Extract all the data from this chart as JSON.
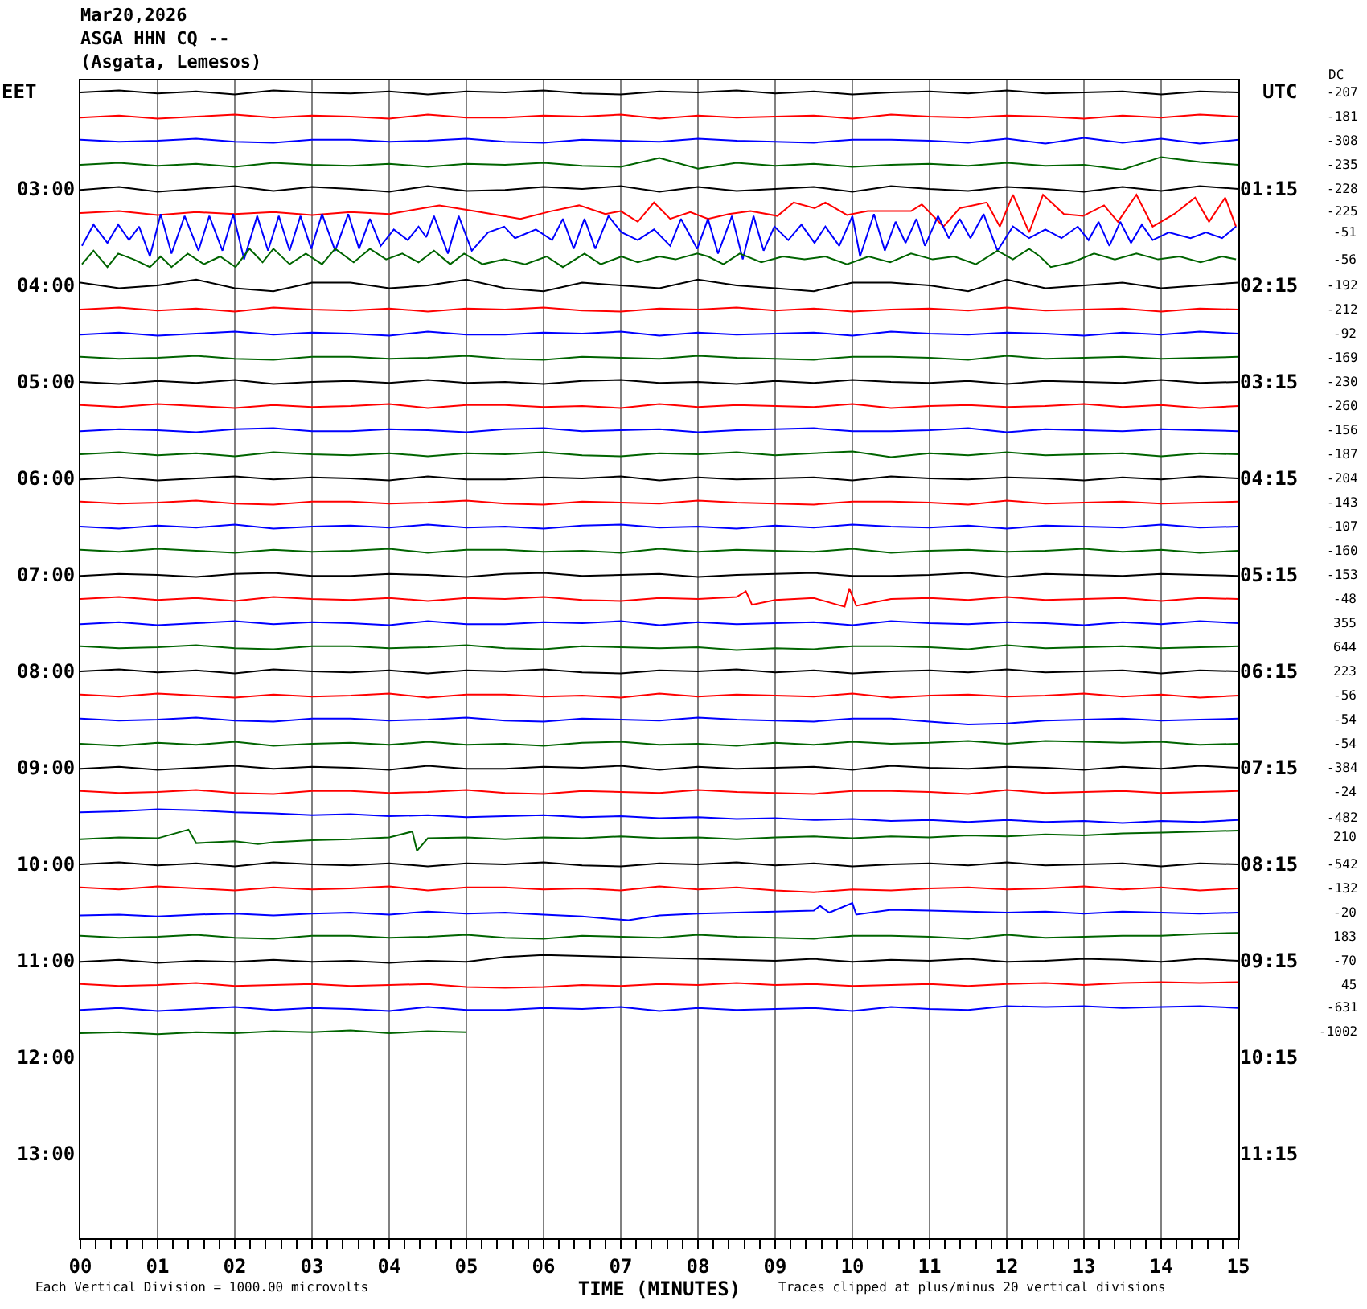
{
  "chart_data": {
    "type": "line",
    "title": "Mar20,2026\nASGA HHN CQ --\n(Asgata, Lemesos)",
    "xlabel": "TIME (MINUTES)",
    "ylabel": "EET",
    "y2label": "UTC",
    "annotations": [
      "Each Vertical Division = 1000.00 microvolts",
      "Traces clipped at plus/minus 20 vertical divisions",
      "DC",
      "-207",
      "-181",
      "-308",
      "-235",
      "-228",
      "-225",
      "-51",
      "-56",
      "-192",
      "-212",
      "-92",
      "-169",
      "-230",
      "-260",
      "-156",
      "-187",
      "-204",
      "-143",
      "-107",
      "-160",
      "-153",
      "-48",
      "355",
      "644",
      "223",
      "-56",
      "-54",
      "-54",
      "-384",
      "-24",
      "-482",
      "210",
      "-542",
      "-132",
      "-20",
      "183",
      "-70",
      "45",
      "-631",
      "-1002"
    ],
    "x": [
      0,
      0.5,
      1,
      1.5,
      2,
      2.5,
      3,
      3.5,
      4,
      4.5,
      5,
      5.5,
      6,
      6.5,
      7,
      7.5,
      8,
      8.5,
      9,
      9.5,
      10,
      10.5,
      11,
      11.5,
      12,
      12.5,
      13,
      13.5,
      14,
      14.5,
      15
    ],
    "series": [
      {
        "color": "#000000",
        "values": [
          2,
          1.98,
          2.01,
          1.99,
          2.02,
          1.98,
          2,
          2.01,
          1.99,
          2.02,
          1.99,
          2,
          1.98,
          2.01,
          2.02,
          1.99,
          2,
          1.98,
          2.01,
          1.99,
          2.02,
          2,
          1.99,
          2.01,
          1.98,
          2.01,
          2,
          1.99,
          2.02,
          1.99,
          2
        ]
      },
      {
        "color": "#ff0000",
        "values": [
          2.26,
          2.24,
          2.27,
          2.25,
          2.23,
          2.26,
          2.24,
          2.25,
          2.27,
          2.23,
          2.26,
          2.26,
          2.24,
          2.25,
          2.23,
          2.27,
          2.24,
          2.26,
          2.25,
          2.24,
          2.27,
          2.23,
          2.25,
          2.26,
          2.24,
          2.25,
          2.27,
          2.24,
          2.26,
          2.23,
          2.25
        ]
      },
      {
        "color": "#0000ff",
        "values": [
          2.49,
          2.51,
          2.5,
          2.48,
          2.51,
          2.52,
          2.49,
          2.49,
          2.51,
          2.5,
          2.48,
          2.51,
          2.52,
          2.49,
          2.5,
          2.51,
          2.48,
          2.5,
          2.51,
          2.52,
          2.49,
          2.49,
          2.5,
          2.52,
          2.48,
          2.53,
          2.47,
          2.52,
          2.48,
          2.53,
          2.49
        ]
      },
      {
        "color": "#006400",
        "values": [
          2.75,
          2.73,
          2.76,
          2.74,
          2.77,
          2.73,
          2.75,
          2.76,
          2.74,
          2.77,
          2.74,
          2.75,
          2.73,
          2.76,
          2.77,
          2.68,
          2.79,
          2.73,
          2.76,
          2.74,
          2.77,
          2.75,
          2.74,
          2.76,
          2.73,
          2.76,
          2.75,
          2.8,
          2.67,
          2.72,
          2.75
        ]
      },
      {
        "color": "#000000",
        "values": [
          3.01,
          2.98,
          3.03,
          3,
          2.97,
          3.02,
          2.98,
          3,
          3.03,
          2.97,
          3.02,
          3.01,
          2.98,
          3,
          2.97,
          3.03,
          2.98,
          3.02,
          3,
          2.98,
          3.03,
          2.97,
          3,
          3.02,
          2.98,
          3,
          3.03,
          2.98,
          3.02,
          2.97,
          3
        ]
      },
      {
        "color": "#ff0000",
        "x": [
          0,
          0.5,
          1,
          1.5,
          2,
          2.5,
          3,
          3.5,
          4,
          4.65,
          5.1,
          5.7,
          6.1,
          6.46,
          6.8,
          7,
          7.22,
          7.43,
          7.64,
          7.9,
          8.13,
          8.4,
          8.68,
          9.03,
          9.24,
          9.51,
          9.65,
          9.93,
          10.2,
          10.49,
          10.76,
          10.9,
          11.18,
          11.39,
          11.74,
          11.91,
          12.08,
          12.29,
          12.47,
          12.74,
          12.99,
          13.26,
          13.44,
          13.68,
          13.89,
          14.17,
          14.44,
          14.62,
          14.83,
          14.97
        ],
        "values": [
          3.25,
          3.23,
          3.27,
          3.24,
          3.26,
          3.24,
          3.27,
          3.24,
          3.26,
          3.17,
          3.23,
          3.31,
          3.23,
          3.17,
          3.26,
          3.23,
          3.34,
          3.14,
          3.31,
          3.24,
          3.31,
          3.26,
          3.23,
          3.28,
          3.14,
          3.2,
          3.14,
          3.27,
          3.23,
          3.23,
          3.23,
          3.16,
          3.39,
          3.2,
          3.14,
          3.39,
          3.06,
          3.45,
          3.06,
          3.26,
          3.28,
          3.17,
          3.34,
          3.06,
          3.39,
          3.26,
          3.09,
          3.34,
          3.09,
          3.39
        ]
      },
      {
        "color": "#0000ff",
        "x": [
          0.02,
          0.17,
          0.35,
          0.49,
          0.63,
          0.76,
          0.9,
          1.04,
          1.18,
          1.35,
          1.53,
          1.67,
          1.84,
          1.98,
          2.12,
          2.29,
          2.43,
          2.57,
          2.71,
          2.85,
          2.99,
          3.13,
          3.3,
          3.47,
          3.61,
          3.75,
          3.89,
          4.06,
          4.24,
          4.38,
          4.48,
          4.58,
          4.76,
          4.9,
          5.07,
          5.28,
          5.49,
          5.63,
          5.9,
          6.11,
          6.25,
          6.39,
          6.53,
          6.67,
          6.84,
          7.01,
          7.22,
          7.43,
          7.64,
          7.78,
          7.99,
          8.13,
          8.26,
          8.44,
          8.58,
          8.72,
          8.85,
          8.99,
          9.17,
          9.34,
          9.51,
          9.65,
          9.83,
          10,
          10.1,
          10.28,
          10.42,
          10.56,
          10.69,
          10.83,
          10.94,
          11.11,
          11.25,
          11.39,
          11.53,
          11.7,
          11.88,
          12.08,
          12.29,
          12.5,
          12.71,
          12.92,
          13.06,
          13.19,
          13.33,
          13.47,
          13.61,
          13.75,
          13.89,
          14.1,
          14.38,
          14.58,
          14.79,
          14.97
        ],
        "values": [
          3.59,
          3.37,
          3.56,
          3.37,
          3.53,
          3.39,
          3.7,
          3.26,
          3.67,
          3.28,
          3.64,
          3.28,
          3.64,
          3.26,
          3.73,
          3.28,
          3.64,
          3.28,
          3.64,
          3.28,
          3.62,
          3.26,
          3.64,
          3.26,
          3.62,
          3.31,
          3.59,
          3.42,
          3.53,
          3.39,
          3.5,
          3.28,
          3.67,
          3.28,
          3.64,
          3.45,
          3.39,
          3.51,
          3.42,
          3.53,
          3.31,
          3.62,
          3.31,
          3.62,
          3.28,
          3.45,
          3.53,
          3.42,
          3.59,
          3.31,
          3.62,
          3.31,
          3.67,
          3.28,
          3.73,
          3.28,
          3.64,
          3.39,
          3.53,
          3.37,
          3.56,
          3.39,
          3.59,
          3.28,
          3.7,
          3.26,
          3.64,
          3.34,
          3.56,
          3.31,
          3.59,
          3.28,
          3.51,
          3.31,
          3.51,
          3.26,
          3.64,
          3.39,
          3.51,
          3.42,
          3.51,
          3.39,
          3.53,
          3.34,
          3.59,
          3.34,
          3.56,
          3.37,
          3.53,
          3.45,
          3.51,
          3.45,
          3.51,
          3.39
        ]
      },
      {
        "color": "#006400",
        "x": [
          0.02,
          0.17,
          0.35,
          0.49,
          0.69,
          0.9,
          1.04,
          1.18,
          1.39,
          1.6,
          1.81,
          2.01,
          2.19,
          2.36,
          2.5,
          2.71,
          2.92,
          3.13,
          3.3,
          3.54,
          3.75,
          3.96,
          4.17,
          4.38,
          4.58,
          4.79,
          4.97,
          5.21,
          5.49,
          5.76,
          6.04,
          6.25,
          6.53,
          6.74,
          7.01,
          7.22,
          7.5,
          7.71,
          7.99,
          8.13,
          8.33,
          8.54,
          8.82,
          9.1,
          9.38,
          9.65,
          9.93,
          10.21,
          10.49,
          10.76,
          11.04,
          11.32,
          11.6,
          11.88,
          12.08,
          12.29,
          12.43,
          12.57,
          12.85,
          13.13,
          13.4,
          13.68,
          13.96,
          14.24,
          14.51,
          14.79,
          14.97
        ],
        "values": [
          3.78,
          3.64,
          3.81,
          3.67,
          3.73,
          3.81,
          3.7,
          3.81,
          3.67,
          3.78,
          3.7,
          3.81,
          3.62,
          3.76,
          3.62,
          3.78,
          3.67,
          3.78,
          3.62,
          3.76,
          3.62,
          3.73,
          3.67,
          3.76,
          3.64,
          3.78,
          3.67,
          3.78,
          3.73,
          3.78,
          3.7,
          3.81,
          3.67,
          3.78,
          3.7,
          3.76,
          3.7,
          3.73,
          3.67,
          3.7,
          3.78,
          3.67,
          3.76,
          3.7,
          3.73,
          3.7,
          3.78,
          3.7,
          3.76,
          3.67,
          3.73,
          3.7,
          3.78,
          3.64,
          3.73,
          3.62,
          3.7,
          3.81,
          3.76,
          3.67,
          3.73,
          3.67,
          3.73,
          3.7,
          3.76,
          3.7,
          3.73
        ]
      },
      {
        "color": "#000000",
        "values": [
          3.97,
          4.03,
          4,
          3.94,
          4.03,
          4.06,
          3.97,
          3.97,
          4.03,
          4,
          3.94,
          4.03,
          4.06,
          3.97,
          4,
          4.03,
          3.94,
          4,
          4.03,
          4.06,
          3.97,
          3.97,
          4,
          4.06,
          3.94,
          4.03,
          4,
          3.97,
          4.03,
          4,
          3.97
        ]
      },
      {
        "color": "#ff0000",
        "values": [
          4.25,
          4.23,
          4.26,
          4.24,
          4.27,
          4.23,
          4.25,
          4.26,
          4.24,
          4.27,
          4.24,
          4.25,
          4.23,
          4.26,
          4.27,
          4.24,
          4.25,
          4.23,
          4.26,
          4.24,
          4.27,
          4.25,
          4.24,
          4.26,
          4.23,
          4.26,
          4.25,
          4.24,
          4.27,
          4.24,
          4.25
        ]
      },
      {
        "color": "#0000ff",
        "values": [
          4.51,
          4.49,
          4.52,
          4.5,
          4.48,
          4.51,
          4.49,
          4.5,
          4.52,
          4.48,
          4.51,
          4.51,
          4.49,
          4.5,
          4.48,
          4.52,
          4.49,
          4.51,
          4.5,
          4.49,
          4.52,
          4.48,
          4.5,
          4.51,
          4.49,
          4.5,
          4.52,
          4.49,
          4.51,
          4.48,
          4.5
        ]
      },
      {
        "color": "#006400",
        "values": [
          4.74,
          4.76,
          4.75,
          4.73,
          4.76,
          4.77,
          4.74,
          4.74,
          4.76,
          4.75,
          4.73,
          4.76,
          4.77,
          4.74,
          4.75,
          4.76,
          4.73,
          4.75,
          4.76,
          4.77,
          4.74,
          4.74,
          4.75,
          4.77,
          4.73,
          4.76,
          4.75,
          4.74,
          4.76,
          4.75,
          4.74
        ]
      },
      {
        "color": "#000000",
        "values": [
          5,
          5.02,
          4.99,
          5.01,
          4.98,
          5.02,
          5,
          4.99,
          5.01,
          4.98,
          5.01,
          5,
          5.02,
          4.99,
          4.98,
          5.01,
          5,
          5.02,
          4.99,
          5.01,
          4.98,
          5,
          5.01,
          4.99,
          5.02,
          4.99,
          5,
          5.01,
          4.98,
          5.01,
          5
        ]
      },
      {
        "color": "#ff0000",
        "values": [
          5.24,
          5.26,
          5.23,
          5.25,
          5.27,
          5.24,
          5.26,
          5.25,
          5.23,
          5.27,
          5.24,
          5.24,
          5.26,
          5.25,
          5.27,
          5.23,
          5.26,
          5.24,
          5.25,
          5.26,
          5.23,
          5.27,
          5.25,
          5.24,
          5.26,
          5.25,
          5.23,
          5.26,
          5.24,
          5.27,
          5.25
        ]
      },
      {
        "color": "#0000ff",
        "values": [
          5.51,
          5.49,
          5.5,
          5.52,
          5.49,
          5.48,
          5.51,
          5.51,
          5.49,
          5.5,
          5.52,
          5.49,
          5.48,
          5.51,
          5.5,
          5.49,
          5.52,
          5.5,
          5.49,
          5.48,
          5.51,
          5.51,
          5.5,
          5.48,
          5.52,
          5.49,
          5.5,
          5.51,
          5.49,
          5.5,
          5.51
        ]
      },
      {
        "color": "#006400",
        "values": [
          5.75,
          5.73,
          5.76,
          5.74,
          5.77,
          5.73,
          5.75,
          5.76,
          5.74,
          5.77,
          5.74,
          5.75,
          5.73,
          5.76,
          5.77,
          5.74,
          5.75,
          5.73,
          5.76,
          5.74,
          5.72,
          5.78,
          5.74,
          5.76,
          5.73,
          5.76,
          5.75,
          5.74,
          5.77,
          5.74,
          5.75
        ]
      },
      {
        "color": "#000000",
        "values": [
          6.01,
          5.99,
          6.02,
          6,
          5.98,
          6.01,
          5.99,
          6,
          6.02,
          5.98,
          6.01,
          6.01,
          5.99,
          6,
          5.98,
          6.02,
          5.99,
          6.01,
          6,
          5.99,
          6.02,
          5.98,
          6,
          6.01,
          5.99,
          6,
          6.02,
          5.99,
          6.01,
          5.98,
          6
        ]
      },
      {
        "color": "#ff0000",
        "values": [
          6.24,
          6.26,
          6.25,
          6.23,
          6.26,
          6.27,
          6.24,
          6.24,
          6.26,
          6.25,
          6.23,
          6.26,
          6.27,
          6.24,
          6.25,
          6.26,
          6.23,
          6.25,
          6.26,
          6.27,
          6.24,
          6.24,
          6.25,
          6.27,
          6.23,
          6.26,
          6.25,
          6.24,
          6.26,
          6.25,
          6.24
        ]
      },
      {
        "color": "#0000ff",
        "values": [
          6.5,
          6.52,
          6.49,
          6.51,
          6.48,
          6.52,
          6.5,
          6.49,
          6.51,
          6.48,
          6.51,
          6.5,
          6.52,
          6.49,
          6.48,
          6.51,
          6.5,
          6.52,
          6.49,
          6.51,
          6.48,
          6.5,
          6.51,
          6.49,
          6.52,
          6.49,
          6.5,
          6.51,
          6.48,
          6.51,
          6.5
        ]
      },
      {
        "color": "#006400",
        "values": [
          6.74,
          6.76,
          6.73,
          6.75,
          6.77,
          6.74,
          6.76,
          6.75,
          6.73,
          6.77,
          6.74,
          6.74,
          6.76,
          6.75,
          6.77,
          6.73,
          6.76,
          6.74,
          6.75,
          6.76,
          6.73,
          6.77,
          6.75,
          6.74,
          6.76,
          6.75,
          6.73,
          6.76,
          6.74,
          6.77,
          6.75
        ]
      },
      {
        "color": "#000000",
        "values": [
          7.01,
          6.99,
          7,
          7.02,
          6.99,
          6.98,
          7.01,
          7.01,
          6.99,
          7,
          7.02,
          6.99,
          6.98,
          7.01,
          7,
          6.99,
          7.02,
          7,
          6.99,
          6.98,
          7.01,
          7.01,
          7,
          6.98,
          7.02,
          6.99,
          7,
          7.01,
          6.99,
          7,
          7.01
        ]
      },
      {
        "color": "#ff0000",
        "x": [
          0,
          0.5,
          1,
          1.5,
          2,
          2.5,
          3,
          3.5,
          4,
          4.5,
          5,
          5.5,
          6,
          6.5,
          7,
          7.5,
          8,
          8.5,
          8.62,
          8.7,
          9,
          9.5,
          9.9,
          9.96,
          10.05,
          10.5,
          11,
          11.5,
          12,
          12.5,
          13,
          13.5,
          14,
          14.5,
          15
        ],
        "values": [
          7.25,
          7.23,
          7.26,
          7.24,
          7.27,
          7.23,
          7.25,
          7.26,
          7.24,
          7.27,
          7.24,
          7.25,
          7.23,
          7.26,
          7.27,
          7.24,
          7.25,
          7.23,
          7.17,
          7.31,
          7.26,
          7.24,
          7.33,
          7.14,
          7.32,
          7.25,
          7.24,
          7.26,
          7.23,
          7.26,
          7.25,
          7.24,
          7.27,
          7.24,
          7.25
        ]
      },
      {
        "color": "#0000ff",
        "values": [
          7.51,
          7.49,
          7.52,
          7.5,
          7.48,
          7.51,
          7.49,
          7.5,
          7.52,
          7.48,
          7.51,
          7.51,
          7.49,
          7.5,
          7.48,
          7.52,
          7.49,
          7.51,
          7.5,
          7.49,
          7.52,
          7.48,
          7.5,
          7.51,
          7.49,
          7.5,
          7.52,
          7.49,
          7.51,
          7.48,
          7.5
        ]
      },
      {
        "color": "#006400",
        "values": [
          7.74,
          7.76,
          7.75,
          7.73,
          7.76,
          7.77,
          7.74,
          7.74,
          7.76,
          7.75,
          7.73,
          7.76,
          7.77,
          7.74,
          7.75,
          7.76,
          7.75,
          7.78,
          7.76,
          7.77,
          7.74,
          7.74,
          7.75,
          7.77,
          7.73,
          7.76,
          7.75,
          7.74,
          7.76,
          7.75,
          7.74
        ]
      },
      {
        "color": "#000000",
        "values": [
          8,
          7.98,
          8.01,
          7.99,
          8.02,
          7.98,
          8,
          8.01,
          7.99,
          8.02,
          7.99,
          8,
          7.98,
          8.01,
          8.02,
          7.99,
          8,
          7.98,
          8.01,
          7.99,
          8.02,
          8,
          7.99,
          8.01,
          7.98,
          8.01,
          8,
          7.99,
          8.02,
          7.99,
          8
        ]
      },
      {
        "color": "#ff0000",
        "values": [
          8.24,
          8.26,
          8.23,
          8.25,
          8.27,
          8.24,
          8.26,
          8.25,
          8.23,
          8.27,
          8.24,
          8.24,
          8.26,
          8.25,
          8.27,
          8.23,
          8.26,
          8.24,
          8.25,
          8.26,
          8.23,
          8.27,
          8.25,
          8.24,
          8.26,
          8.25,
          8.23,
          8.26,
          8.24,
          8.27,
          8.25
        ]
      },
      {
        "color": "#0000ff",
        "values": [
          8.49,
          8.51,
          8.5,
          8.48,
          8.51,
          8.52,
          8.49,
          8.49,
          8.51,
          8.5,
          8.48,
          8.51,
          8.52,
          8.49,
          8.5,
          8.51,
          8.48,
          8.5,
          8.51,
          8.52,
          8.49,
          8.49,
          8.52,
          8.55,
          8.54,
          8.51,
          8.5,
          8.49,
          8.51,
          8.5,
          8.49
        ]
      },
      {
        "color": "#006400",
        "values": [
          8.75,
          8.77,
          8.74,
          8.76,
          8.73,
          8.77,
          8.75,
          8.74,
          8.76,
          8.73,
          8.76,
          8.75,
          8.77,
          8.74,
          8.73,
          8.76,
          8.75,
          8.77,
          8.74,
          8.76,
          8.73,
          8.75,
          8.74,
          8.72,
          8.75,
          8.72,
          8.73,
          8.74,
          8.73,
          8.76,
          8.75
        ]
      },
      {
        "color": "#000000",
        "values": [
          9.01,
          8.99,
          9.02,
          9,
          8.98,
          9.01,
          8.99,
          9,
          9.02,
          8.98,
          9.01,
          9.01,
          8.99,
          9,
          8.98,
          9.02,
          8.99,
          9.01,
          9,
          8.99,
          9.02,
          8.98,
          9,
          9.01,
          8.99,
          9,
          9.02,
          8.99,
          9.01,
          8.98,
          9
        ]
      },
      {
        "color": "#ff0000",
        "values": [
          9.24,
          9.26,
          9.25,
          9.23,
          9.26,
          9.27,
          9.24,
          9.24,
          9.26,
          9.25,
          9.23,
          9.26,
          9.27,
          9.24,
          9.25,
          9.26,
          9.23,
          9.25,
          9.26,
          9.27,
          9.24,
          9.24,
          9.25,
          9.27,
          9.23,
          9.26,
          9.25,
          9.24,
          9.26,
          9.25,
          9.24
        ]
      },
      {
        "color": "#0000ff",
        "values": [
          9.46,
          9.45,
          9.43,
          9.44,
          9.46,
          9.47,
          9.49,
          9.48,
          9.5,
          9.49,
          9.51,
          9.5,
          9.49,
          9.51,
          9.5,
          9.52,
          9.51,
          9.53,
          9.52,
          9.54,
          9.53,
          9.55,
          9.54,
          9.56,
          9.54,
          9.56,
          9.55,
          9.57,
          9.55,
          9.56,
          9.54
        ]
      },
      {
        "color": "#006400",
        "x": [
          0,
          0.5,
          1,
          1.4,
          1.5,
          2,
          2.3,
          2.5,
          3,
          3.5,
          4,
          4.3,
          4.36,
          4.5,
          5,
          5.5,
          6,
          6.5,
          7,
          7.5,
          8,
          8.5,
          9,
          9.5,
          10,
          10.5,
          11,
          11.5,
          12,
          12.5,
          13,
          13.5,
          14,
          14.5,
          15
        ],
        "values": [
          9.74,
          9.72,
          9.73,
          9.64,
          9.78,
          9.76,
          9.79,
          9.77,
          9.75,
          9.74,
          9.72,
          9.66,
          9.86,
          9.73,
          9.72,
          9.74,
          9.72,
          9.73,
          9.71,
          9.73,
          9.72,
          9.74,
          9.72,
          9.71,
          9.73,
          9.71,
          9.72,
          9.7,
          9.71,
          9.69,
          9.7,
          9.68,
          9.67,
          9.66,
          9.65
        ]
      },
      {
        "color": "#000000",
        "values": [
          10,
          9.98,
          10.01,
          9.99,
          10.02,
          9.98,
          10,
          10.01,
          9.99,
          10.02,
          9.99,
          10,
          9.98,
          10.01,
          10.02,
          9.99,
          10,
          9.98,
          10.01,
          9.99,
          10.02,
          10,
          9.99,
          10.01,
          9.98,
          10.01,
          10,
          9.99,
          10.02,
          9.99,
          10
        ]
      },
      {
        "color": "#ff0000",
        "values": [
          10.24,
          10.26,
          10.23,
          10.25,
          10.27,
          10.24,
          10.26,
          10.25,
          10.23,
          10.27,
          10.24,
          10.24,
          10.26,
          10.25,
          10.27,
          10.23,
          10.26,
          10.24,
          10.27,
          10.29,
          10.26,
          10.27,
          10.25,
          10.24,
          10.26,
          10.25,
          10.23,
          10.26,
          10.24,
          10.27,
          10.25
        ]
      },
      {
        "color": "#0000ff",
        "x": [
          0,
          0.5,
          1,
          1.5,
          2,
          2.5,
          3,
          3.5,
          4,
          4.5,
          5,
          5.5,
          6,
          6.5,
          7.1,
          7.5,
          8,
          8.5,
          9,
          9.5,
          9.58,
          9.7,
          10,
          10.05,
          10.5,
          11,
          11.5,
          12,
          12.5,
          13,
          13.5,
          14,
          14.5,
          15
        ],
        "values": [
          10.53,
          10.52,
          10.54,
          10.52,
          10.51,
          10.53,
          10.51,
          10.5,
          10.52,
          10.49,
          10.51,
          10.5,
          10.52,
          10.54,
          10.58,
          10.53,
          10.51,
          10.5,
          10.49,
          10.48,
          10.43,
          10.5,
          10.4,
          10.52,
          10.47,
          10.48,
          10.49,
          10.5,
          10.49,
          10.51,
          10.49,
          10.5,
          10.51,
          10.5
        ]
      },
      {
        "color": "#006400",
        "values": [
          10.74,
          10.76,
          10.75,
          10.73,
          10.76,
          10.77,
          10.74,
          10.74,
          10.76,
          10.75,
          10.73,
          10.76,
          10.77,
          10.74,
          10.75,
          10.76,
          10.73,
          10.75,
          10.76,
          10.77,
          10.74,
          10.74,
          10.75,
          10.77,
          10.73,
          10.76,
          10.75,
          10.74,
          10.74,
          10.72,
          10.71
        ]
      },
      {
        "color": "#000000",
        "values": [
          11.01,
          10.99,
          11.02,
          11,
          11.01,
          10.99,
          11.01,
          11,
          11.02,
          11,
          11.01,
          10.96,
          10.94,
          10.95,
          10.96,
          10.97,
          10.98,
          10.99,
          11,
          10.98,
          11.01,
          10.99,
          11,
          10.98,
          11.01,
          11,
          10.98,
          10.99,
          11.01,
          10.98,
          11
        ]
      },
      {
        "color": "#ff0000",
        "values": [
          11.24,
          11.26,
          11.25,
          11.23,
          11.26,
          11.25,
          11.24,
          11.26,
          11.25,
          11.24,
          11.27,
          11.28,
          11.27,
          11.25,
          11.26,
          11.24,
          11.25,
          11.23,
          11.25,
          11.24,
          11.26,
          11.25,
          11.24,
          11.26,
          11.24,
          11.23,
          11.25,
          11.23,
          11.22,
          11.23,
          11.22
        ]
      },
      {
        "color": "#0000ff",
        "values": [
          11.51,
          11.49,
          11.52,
          11.5,
          11.48,
          11.51,
          11.49,
          11.5,
          11.52,
          11.48,
          11.51,
          11.51,
          11.49,
          11.5,
          11.48,
          11.52,
          11.49,
          11.51,
          11.5,
          11.49,
          11.52,
          11.48,
          11.5,
          11.51,
          11.47,
          11.48,
          11.47,
          11.49,
          11.48,
          11.47,
          11.49
        ]
      },
      {
        "color": "#006400",
        "x": [
          0,
          0.5,
          1,
          1.5,
          2,
          2.5,
          3,
          3.5,
          4,
          4.5,
          5
        ],
        "values": [
          11.75,
          11.74,
          11.76,
          11.74,
          11.75,
          11.73,
          11.74,
          11.72,
          11.75,
          11.73,
          11.74
        ]
      }
    ],
    "xlim": [
      0,
      15
    ],
    "xticks": [
      {
        "value": 0,
        "label": "00"
      },
      {
        "value": 0.2,
        "label": null
      },
      {
        "value": 0.4,
        "label": null
      },
      {
        "value": 0.6,
        "label": null
      },
      {
        "value": 0.8,
        "label": null
      },
      {
        "value": 1,
        "label": "01"
      },
      {
        "value": 1.2,
        "label": null
      },
      {
        "value": 1.4,
        "label": null
      },
      {
        "value": 1.6,
        "label": null
      },
      {
        "value": 1.8,
        "label": null
      },
      {
        "value": 2,
        "label": "02"
      },
      {
        "value": 2.2,
        "label": null
      },
      {
        "value": 2.4,
        "label": null
      },
      {
        "value": 2.6,
        "label": null
      },
      {
        "value": 2.8,
        "label": null
      },
      {
        "value": 3,
        "label": "03"
      },
      {
        "value": 3.2,
        "label": null
      },
      {
        "value": 3.4,
        "label": null
      },
      {
        "value": 3.6,
        "label": null
      },
      {
        "value": 3.8,
        "label": null
      },
      {
        "value": 4,
        "label": "04"
      },
      {
        "value": 4.2,
        "label": null
      },
      {
        "value": 4.4,
        "label": null
      },
      {
        "value": 4.6,
        "label": null
      },
      {
        "value": 4.8,
        "label": null
      },
      {
        "value": 5,
        "label": "05"
      },
      {
        "value": 5.2,
        "label": null
      },
      {
        "value": 5.4,
        "label": null
      },
      {
        "value": 5.6,
        "label": null
      },
      {
        "value": 5.8,
        "label": null
      },
      {
        "value": 6,
        "label": "06"
      },
      {
        "value": 6.2,
        "label": null
      },
      {
        "value": 6.4,
        "label": null
      },
      {
        "value": 6.6,
        "label": null
      },
      {
        "value": 6.8,
        "label": null
      },
      {
        "value": 7,
        "label": "07"
      },
      {
        "value": 7.2,
        "label": null
      },
      {
        "value": 7.4,
        "label": null
      },
      {
        "value": 7.6,
        "label": null
      },
      {
        "value": 7.8,
        "label": null
      },
      {
        "value": 8,
        "label": "08"
      },
      {
        "value": 8.2,
        "label": null
      },
      {
        "value": 8.4,
        "label": null
      },
      {
        "value": 8.6,
        "label": null
      },
      {
        "value": 8.8,
        "label": null
      },
      {
        "value": 9,
        "label": "09"
      },
      {
        "value": 9.2,
        "label": null
      },
      {
        "value": 9.4,
        "label": null
      },
      {
        "value": 9.6,
        "label": null
      },
      {
        "value": 9.8,
        "label": null
      },
      {
        "value": 10,
        "label": "10"
      },
      {
        "value": 10.2,
        "label": null
      },
      {
        "value": 10.4,
        "label": null
      },
      {
        "value": 10.6,
        "label": null
      },
      {
        "value": 10.8,
        "label": null
      },
      {
        "value": 11,
        "label": "11"
      },
      {
        "value": 11.2,
        "label": null
      },
      {
        "value": 11.4,
        "label": null
      },
      {
        "value": 11.6,
        "label": null
      },
      {
        "value": 11.8,
        "label": null
      },
      {
        "value": 12,
        "label": "12"
      },
      {
        "value": 12.2,
        "label": null
      },
      {
        "value": 12.4,
        "label": null
      },
      {
        "value": 12.6,
        "label": null
      },
      {
        "value": 12.8,
        "label": null
      },
      {
        "value": 13,
        "label": "13"
      },
      {
        "value": 13.2,
        "label": null
      },
      {
        "value": 13.4,
        "label": null
      },
      {
        "value": 13.6,
        "label": null
      },
      {
        "value": 13.8,
        "label": null
      },
      {
        "value": 14,
        "label": "14"
      },
      {
        "value": 14.2,
        "label": null
      },
      {
        "value": 14.4,
        "label": null
      },
      {
        "value": 14.6,
        "label": null
      },
      {
        "value": 14.8,
        "label": null
      },
      {
        "value": 15,
        "label": "15"
      }
    ],
    "ylim": [
      13.875,
      1.875
    ],
    "yticks": [
      {
        "value": 3,
        "label": "03:00"
      },
      {
        "value": 4,
        "label": "04:00"
      },
      {
        "value": 5,
        "label": "05:00"
      },
      {
        "value": 6,
        "label": "06:00"
      },
      {
        "value": 7,
        "label": "07:00"
      },
      {
        "value": 8,
        "label": "08:00"
      },
      {
        "value": 9,
        "label": "09:00"
      },
      {
        "value": 10,
        "label": "10:00"
      },
      {
        "value": 11,
        "label": "11:00"
      },
      {
        "value": 12,
        "label": "12:00"
      },
      {
        "value": 13,
        "label": "13:00"
      }
    ],
    "y2lim": [
      12.125,
      0.125
    ],
    "y2ticks": [
      {
        "value": 1.25,
        "label": "01:15"
      },
      {
        "value": 2.25,
        "label": "02:15"
      },
      {
        "value": 3.25,
        "label": "03:15"
      },
      {
        "value": 4.25,
        "label": "04:15"
      },
      {
        "value": 5.25,
        "label": "05:15"
      },
      {
        "value": 6.25,
        "label": "06:15"
      },
      {
        "value": 7.25,
        "label": "07:15"
      },
      {
        "value": 8.25,
        "label": "08:15"
      },
      {
        "value": 9.25,
        "label": "09:15"
      },
      {
        "value": 10.25,
        "label": "10:15"
      },
      {
        "value": 11.25,
        "label": "11:15"
      }
    ],
    "grid": "x",
    "marker": "none",
    "line_style": "solid"
  }
}
